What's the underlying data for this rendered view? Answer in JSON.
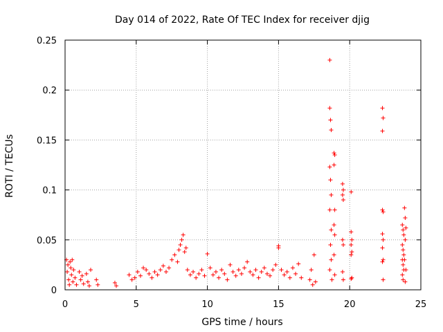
{
  "chart_data": {
    "type": "scatter",
    "title": "Day 014 of 2022, Rate Of TEC Index for receiver djig",
    "xlabel": "GPS time / hours",
    "ylabel": "ROTI / TECUs",
    "xlim": [
      0,
      25
    ],
    "ylim": [
      0,
      0.25
    ],
    "x_ticks": [
      "0",
      "5",
      "10",
      "15",
      "20",
      "25"
    ],
    "y_ticks": [
      "0",
      "0.05",
      "0.1",
      "0.15",
      "0.2",
      "0.25"
    ],
    "grid": true,
    "marker": "+",
    "series_color": "#ff0000",
    "points": [
      [
        0.1,
        0.03
      ],
      [
        0.15,
        0.018
      ],
      [
        0.2,
        0.025
      ],
      [
        0.25,
        0.01
      ],
      [
        0.3,
        0.005
      ],
      [
        0.35,
        0.028
      ],
      [
        0.4,
        0.022
      ],
      [
        0.45,
        0.015
      ],
      [
        0.5,
        0.03
      ],
      [
        0.55,
        0.008
      ],
      [
        0.6,
        0.02
      ],
      [
        0.7,
        0.012
      ],
      [
        0.8,
        0.005
      ],
      [
        1.0,
        0.018
      ],
      [
        1.1,
        0.01
      ],
      [
        1.2,
        0.014
      ],
      [
        1.3,
        0.006
      ],
      [
        1.5,
        0.016
      ],
      [
        1.6,
        0.008
      ],
      [
        1.7,
        0.004
      ],
      [
        1.8,
        0.02
      ],
      [
        2.2,
        0.01
      ],
      [
        2.3,
        0.005
      ],
      [
        3.5,
        0.007
      ],
      [
        3.6,
        0.004
      ],
      [
        4.5,
        0.015
      ],
      [
        4.7,
        0.01
      ],
      [
        4.9,
        0.012
      ],
      [
        5.1,
        0.018
      ],
      [
        5.3,
        0.014
      ],
      [
        5.5,
        0.022
      ],
      [
        5.7,
        0.02
      ],
      [
        5.9,
        0.016
      ],
      [
        6.1,
        0.012
      ],
      [
        6.3,
        0.018
      ],
      [
        6.5,
        0.015
      ],
      [
        6.7,
        0.02
      ],
      [
        6.9,
        0.024
      ],
      [
        7.1,
        0.018
      ],
      [
        7.3,
        0.022
      ],
      [
        7.5,
        0.03
      ],
      [
        7.7,
        0.035
      ],
      [
        7.9,
        0.028
      ],
      [
        8.0,
        0.04
      ],
      [
        8.1,
        0.045
      ],
      [
        8.2,
        0.05
      ],
      [
        8.3,
        0.055
      ],
      [
        8.4,
        0.038
      ],
      [
        8.5,
        0.042
      ],
      [
        8.6,
        0.02
      ],
      [
        8.8,
        0.015
      ],
      [
        9.0,
        0.018
      ],
      [
        9.2,
        0.012
      ],
      [
        9.4,
        0.016
      ],
      [
        9.6,
        0.02
      ],
      [
        9.8,
        0.014
      ],
      [
        10.0,
        0.036
      ],
      [
        10.2,
        0.022
      ],
      [
        10.4,
        0.015
      ],
      [
        10.6,
        0.018
      ],
      [
        10.8,
        0.012
      ],
      [
        11.0,
        0.02
      ],
      [
        11.2,
        0.016
      ],
      [
        11.4,
        0.01
      ],
      [
        11.6,
        0.025
      ],
      [
        11.8,
        0.018
      ],
      [
        12.0,
        0.014
      ],
      [
        12.2,
        0.02
      ],
      [
        12.4,
        0.016
      ],
      [
        12.6,
        0.022
      ],
      [
        12.8,
        0.028
      ],
      [
        13.0,
        0.018
      ],
      [
        13.2,
        0.015
      ],
      [
        13.4,
        0.02
      ],
      [
        13.6,
        0.012
      ],
      [
        13.8,
        0.018
      ],
      [
        14.0,
        0.022
      ],
      [
        14.2,
        0.016
      ],
      [
        14.4,
        0.014
      ],
      [
        14.6,
        0.02
      ],
      [
        14.8,
        0.025
      ],
      [
        15.0,
        0.044
      ],
      [
        15.0,
        0.042
      ],
      [
        15.2,
        0.02
      ],
      [
        15.4,
        0.015
      ],
      [
        15.6,
        0.018
      ],
      [
        15.8,
        0.012
      ],
      [
        16.0,
        0.022
      ],
      [
        16.2,
        0.016
      ],
      [
        16.4,
        0.026
      ],
      [
        16.6,
        0.012
      ],
      [
        17.2,
        0.01
      ],
      [
        17.3,
        0.02
      ],
      [
        17.4,
        0.005
      ],
      [
        17.5,
        0.035
      ],
      [
        17.6,
        0.008
      ],
      [
        18.6,
        0.23
      ],
      [
        18.6,
        0.182
      ],
      [
        18.65,
        0.17
      ],
      [
        18.7,
        0.16
      ],
      [
        18.6,
        0.123
      ],
      [
        18.65,
        0.11
      ],
      [
        18.7,
        0.095
      ],
      [
        18.6,
        0.08
      ],
      [
        18.7,
        0.06
      ],
      [
        18.65,
        0.045
      ],
      [
        18.7,
        0.03
      ],
      [
        18.6,
        0.02
      ],
      [
        18.75,
        0.01
      ],
      [
        18.9,
        0.137
      ],
      [
        18.95,
        0.135
      ],
      [
        18.9,
        0.125
      ],
      [
        18.95,
        0.08
      ],
      [
        18.9,
        0.065
      ],
      [
        18.95,
        0.055
      ],
      [
        18.9,
        0.035
      ],
      [
        18.95,
        0.015
      ],
      [
        19.5,
        0.106
      ],
      [
        19.55,
        0.1
      ],
      [
        19.5,
        0.095
      ],
      [
        19.55,
        0.09
      ],
      [
        19.5,
        0.05
      ],
      [
        19.55,
        0.045
      ],
      [
        19.5,
        0.018
      ],
      [
        19.55,
        0.01
      ],
      [
        20.1,
        0.098
      ],
      [
        20.1,
        0.058
      ],
      [
        20.15,
        0.05
      ],
      [
        20.1,
        0.045
      ],
      [
        20.15,
        0.038
      ],
      [
        20.1,
        0.035
      ],
      [
        20.15,
        0.012
      ],
      [
        20.1,
        0.011
      ],
      [
        22.3,
        0.182
      ],
      [
        22.35,
        0.172
      ],
      [
        22.3,
        0.159
      ],
      [
        22.3,
        0.08
      ],
      [
        22.35,
        0.078
      ],
      [
        22.3,
        0.056
      ],
      [
        22.35,
        0.05
      ],
      [
        22.3,
        0.042
      ],
      [
        22.35,
        0.03
      ],
      [
        22.3,
        0.028
      ],
      [
        22.35,
        0.01
      ],
      [
        23.7,
        0.065
      ],
      [
        23.75,
        0.06
      ],
      [
        23.8,
        0.055
      ],
      [
        23.7,
        0.045
      ],
      [
        23.75,
        0.04
      ],
      [
        23.8,
        0.035
      ],
      [
        23.7,
        0.03
      ],
      [
        23.75,
        0.025
      ],
      [
        23.8,
        0.02
      ],
      [
        23.7,
        0.015
      ],
      [
        23.75,
        0.01
      ],
      [
        23.85,
        0.082
      ],
      [
        23.9,
        0.072
      ],
      [
        23.95,
        0.062
      ],
      [
        23.9,
        0.05
      ],
      [
        23.85,
        0.03
      ],
      [
        23.95,
        0.02
      ],
      [
        23.9,
        0.008
      ]
    ]
  }
}
